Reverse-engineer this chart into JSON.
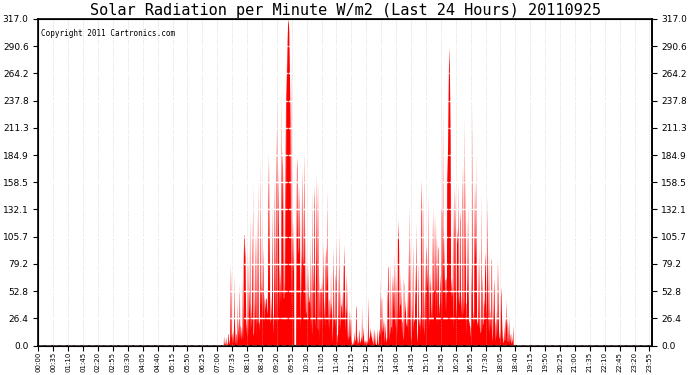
{
  "title": "Solar Radiation per Minute W/m2 (Last 24 Hours) 20110925",
  "copyright": "Copyright 2011 Cartronics.com",
  "y_min": 0.0,
  "y_max": 317.0,
  "y_ticks": [
    0.0,
    26.4,
    52.8,
    79.2,
    105.7,
    132.1,
    158.5,
    184.9,
    211.3,
    237.8,
    264.2,
    290.6,
    317.0
  ],
  "background_color": "#ffffff",
  "plot_bg_color": "#ffffff",
  "bar_color": "#ff0000",
  "grid_color": "#bbbbbb",
  "dashed_line_color": "#ff0000",
  "title_fontsize": 11,
  "x_labels": [
    "00:00",
    "00:35",
    "01:10",
    "01:45",
    "02:20",
    "02:55",
    "03:30",
    "04:05",
    "04:40",
    "05:15",
    "05:50",
    "06:25",
    "07:00",
    "07:35",
    "08:10",
    "08:45",
    "09:20",
    "09:55",
    "10:30",
    "11:05",
    "11:40",
    "12:15",
    "12:50",
    "13:25",
    "14:00",
    "14:35",
    "15:10",
    "15:45",
    "16:20",
    "16:55",
    "17:30",
    "18:05",
    "18:40",
    "19:15",
    "19:50",
    "20:25",
    "21:00",
    "21:35",
    "22:10",
    "22:45",
    "23:20",
    "23:55"
  ]
}
